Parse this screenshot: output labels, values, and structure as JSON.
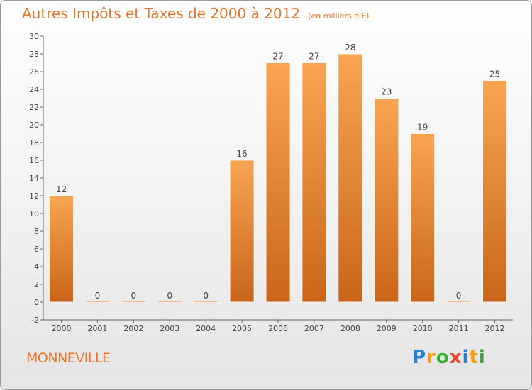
{
  "title": "Autres Impôts et Taxes de 2000 à 2012",
  "subtitle": "(en milliers d'€)",
  "commune": "MONNEVILLE",
  "logo": {
    "letters": [
      "P",
      "r",
      "o",
      "x",
      "i",
      "t",
      "i"
    ],
    "colors": [
      "#2a7fd4",
      "#f0a020",
      "#3aa835",
      "#e8452a",
      "#2a7fd4",
      "#f0a020",
      "#3aa835"
    ]
  },
  "colors": {
    "bar_light": "#f8a552",
    "bar_dark": "#c9651a",
    "title": "#e8762a",
    "axis": "#666666"
  },
  "chart_data": {
    "type": "bar",
    "categories": [
      "2000",
      "2001",
      "2002",
      "2003",
      "2004",
      "2005",
      "2006",
      "2007",
      "2008",
      "2009",
      "2010",
      "2011",
      "2012"
    ],
    "values": [
      12,
      0,
      0,
      0,
      0,
      16,
      27,
      27,
      28,
      23,
      19,
      0,
      25
    ],
    "ylim": [
      -2,
      30
    ],
    "yticks": [
      -2,
      0,
      2,
      4,
      6,
      8,
      10,
      12,
      14,
      16,
      18,
      20,
      22,
      24,
      26,
      28,
      30
    ],
    "grid": false,
    "xlabel": "",
    "ylabel": ""
  }
}
